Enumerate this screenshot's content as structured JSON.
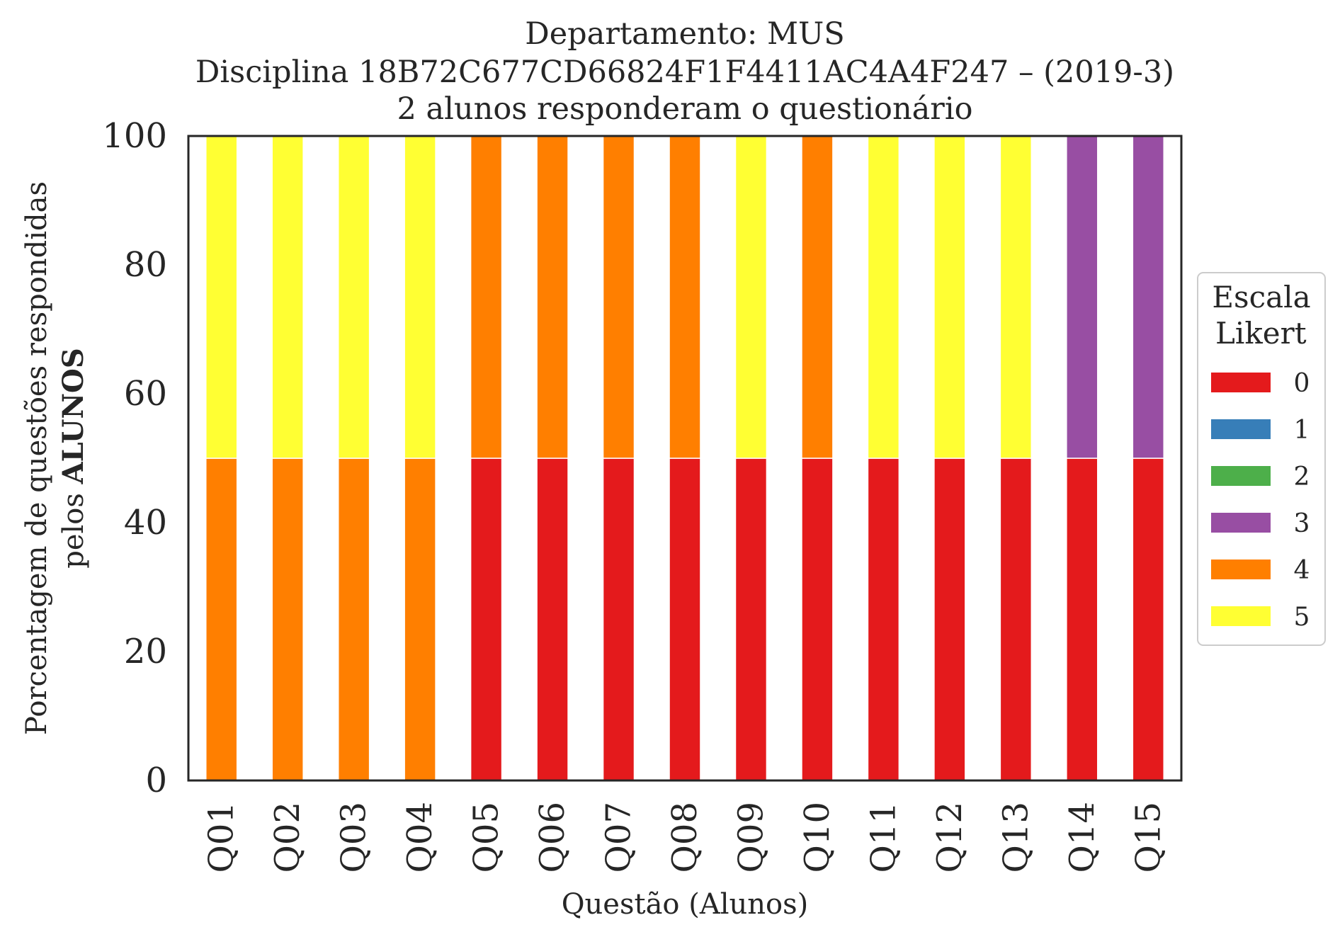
{
  "chart_data": {
    "type": "bar",
    "stacked": true,
    "title": [
      "Departamento: MUS",
      "Disciplina 18B72C677CD66824F1F4411AC4A4F247 – (2019-3)",
      "2 alunos responderam o questionário"
    ],
    "xlabel": "Questão (Alunos)",
    "ylabel": {
      "line1": "Porcentagem de questões respondidas",
      "line2_prefix": "pelos ",
      "line2_bold": "ALUNOS"
    },
    "ylim": [
      0,
      100
    ],
    "yticks": [
      0,
      20,
      40,
      60,
      80,
      100
    ],
    "categories": [
      "Q01",
      "Q02",
      "Q03",
      "Q04",
      "Q05",
      "Q06",
      "Q07",
      "Q08",
      "Q09",
      "Q10",
      "Q11",
      "Q12",
      "Q13",
      "Q14",
      "Q15"
    ],
    "series": [
      {
        "name": "0",
        "color": "#e41a1c",
        "values": [
          0,
          0,
          0,
          0,
          50,
          50,
          50,
          50,
          50,
          50,
          50,
          50,
          50,
          50,
          50
        ]
      },
      {
        "name": "1",
        "color": "#377eb8",
        "values": [
          0,
          0,
          0,
          0,
          0,
          0,
          0,
          0,
          0,
          0,
          0,
          0,
          0,
          0,
          0
        ]
      },
      {
        "name": "2",
        "color": "#4daf4a",
        "values": [
          0,
          0,
          0,
          0,
          0,
          0,
          0,
          0,
          0,
          0,
          0,
          0,
          0,
          0,
          0
        ]
      },
      {
        "name": "3",
        "color": "#984ea3",
        "values": [
          0,
          0,
          0,
          0,
          0,
          0,
          0,
          0,
          0,
          0,
          0,
          0,
          0,
          50,
          50
        ]
      },
      {
        "name": "4",
        "color": "#ff7f00",
        "values": [
          50,
          50,
          50,
          50,
          50,
          50,
          50,
          50,
          0,
          50,
          0,
          0,
          0,
          0,
          0
        ]
      },
      {
        "name": "5",
        "color": "#ffff33",
        "values": [
          50,
          50,
          50,
          50,
          0,
          0,
          0,
          0,
          50,
          0,
          50,
          50,
          50,
          0,
          0
        ]
      }
    ],
    "legend": {
      "title": [
        "Escala",
        "Likert"
      ],
      "placement": "right"
    },
    "grid": false
  }
}
